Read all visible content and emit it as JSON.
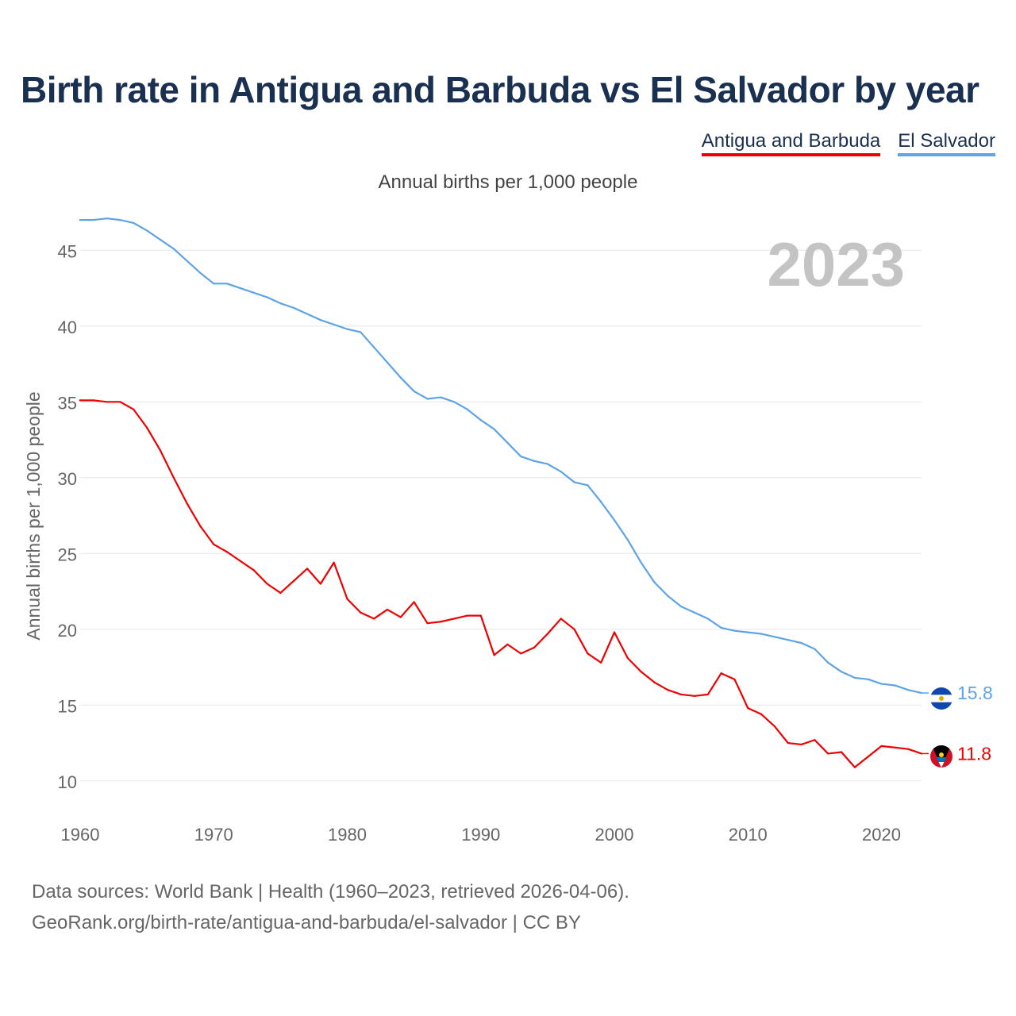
{
  "title": "Birth rate in Antigua and Barbuda vs El Salvador by year",
  "legend": [
    {
      "name": "Antigua and Barbuda",
      "color": "#ee0000"
    },
    {
      "name": "El Salvador",
      "color": "#5ea3e6"
    }
  ],
  "subtitle": "Annual births per 1,000 people",
  "year_label": "2023",
  "footer": {
    "line1": "Data sources: World Bank | Health (1960–2023, retrieved 2026-04-06).",
    "line2": "GeoRank.org/birth-rate/antigua-and-barbuda/el-salvador | CC BY"
  },
  "chart_data": {
    "type": "line",
    "title": "Birth rate in Antigua and Barbuda vs El Salvador by year",
    "xlabel": "",
    "ylabel": "Annual births per 1,000 people",
    "xlim": [
      1960,
      2023
    ],
    "ylim": [
      8,
      48
    ],
    "x_ticks": [
      "1960",
      "1970",
      "1980",
      "1990",
      "2000",
      "2010",
      "2020"
    ],
    "y_ticks": [
      "10",
      "15",
      "20",
      "25",
      "30",
      "35",
      "40",
      "45"
    ],
    "grid": true,
    "x": [
      1960,
      1961,
      1962,
      1963,
      1964,
      1965,
      1966,
      1967,
      1968,
      1969,
      1970,
      1971,
      1972,
      1973,
      1974,
      1975,
      1976,
      1977,
      1978,
      1979,
      1980,
      1981,
      1982,
      1983,
      1984,
      1985,
      1986,
      1987,
      1988,
      1989,
      1990,
      1991,
      1992,
      1993,
      1994,
      1995,
      1996,
      1997,
      1998,
      1999,
      2000,
      2001,
      2002,
      2003,
      2004,
      2005,
      2006,
      2007,
      2008,
      2009,
      2010,
      2011,
      2012,
      2013,
      2014,
      2015,
      2016,
      2017,
      2018,
      2019,
      2020,
      2021,
      2022,
      2023
    ],
    "series": [
      {
        "name": "Antigua and Barbuda",
        "color": "#ee0000",
        "end_label": "11.8",
        "values": [
          35.1,
          35.1,
          35.0,
          35.0,
          34.5,
          33.3,
          31.8,
          30.0,
          28.3,
          26.8,
          25.6,
          25.1,
          24.5,
          23.9,
          23.0,
          22.4,
          23.2,
          24.0,
          23.0,
          24.4,
          22.0,
          21.1,
          20.7,
          21.3,
          20.8,
          21.8,
          20.4,
          20.5,
          20.7,
          20.9,
          20.9,
          18.3,
          19.0,
          18.4,
          18.8,
          19.7,
          20.7,
          20.0,
          18.4,
          17.8,
          19.8,
          18.1,
          17.2,
          16.5,
          16.0,
          15.7,
          15.6,
          15.7,
          17.1,
          16.7,
          14.8,
          14.4,
          13.6,
          12.5,
          12.4,
          12.7,
          11.8,
          11.9,
          10.9,
          11.6,
          12.3,
          12.2,
          12.1,
          11.8
        ]
      },
      {
        "name": "El Salvador",
        "color": "#5ea3e6",
        "end_label": "15.8",
        "values": [
          47.0,
          47.0,
          47.1,
          47.0,
          46.8,
          46.3,
          45.7,
          45.1,
          44.3,
          43.5,
          42.8,
          42.8,
          42.5,
          42.2,
          41.9,
          41.5,
          41.2,
          40.8,
          40.4,
          40.1,
          39.8,
          39.6,
          38.6,
          37.6,
          36.6,
          35.7,
          35.2,
          35.3,
          35.0,
          34.5,
          33.8,
          33.2,
          32.3,
          31.4,
          31.1,
          30.9,
          30.4,
          29.7,
          29.5,
          28.4,
          27.2,
          25.9,
          24.4,
          23.1,
          22.2,
          21.5,
          21.1,
          20.7,
          20.1,
          19.9,
          19.8,
          19.7,
          19.5,
          19.3,
          19.1,
          18.7,
          17.8,
          17.2,
          16.8,
          16.7,
          16.4,
          16.3,
          16.0,
          15.8
        ]
      }
    ]
  }
}
